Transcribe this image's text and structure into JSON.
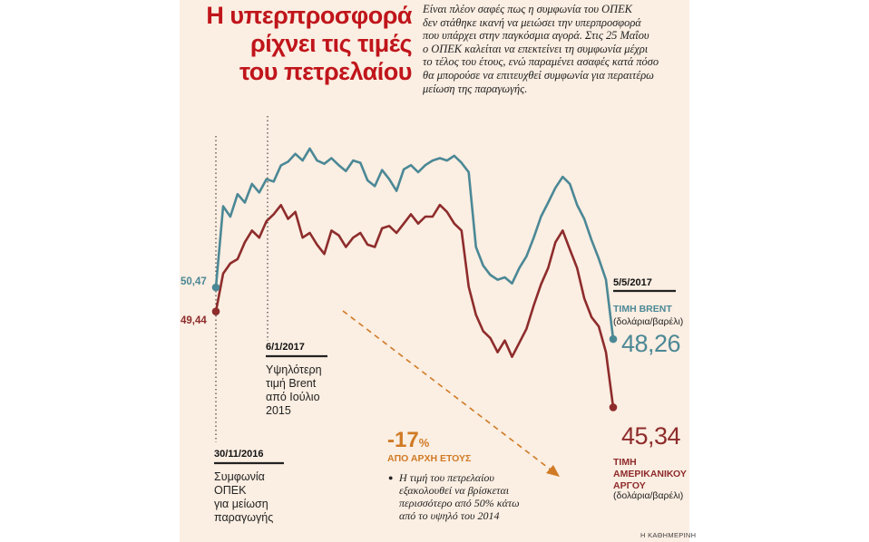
{
  "title_lines": [
    "Η υπερπροσφορά",
    "ρίχνει τις τιμές",
    "του πετρελαίου"
  ],
  "intro_lines": [
    "Είναι πλέον σαφές πως η συμφωνία του ΟΠΕΚ",
    "δεν στάθηκε ικανή να μειώσει την υπερπροσφορά",
    "που υπάρχει στην παγκόσμια αγορά. Στις 25 Μαΐου",
    "ο ΟΠΕΚ καλείται να επεκτείνει τη συμφωνία μέχρι",
    "το τέλος του έτους, ενώ παραμένει ασαφές κατά πόσο",
    "θα μπορούσε να επιτευχθεί συμφωνία για περαιτέρω",
    "μείωση της παραγωγής."
  ],
  "annotations": {
    "agreement": {
      "date": "30/11/2016",
      "lines": [
        "Συμφωνία",
        "ΟΠΕΚ",
        "για μείωση",
        "παραγωγής"
      ]
    },
    "peak": {
      "date": "6/1/2017",
      "lines": [
        "Υψηλότερη",
        "τιμή Brent",
        "από Ιούλιο",
        "2015"
      ]
    },
    "latest": {
      "date": "5/5/2017"
    },
    "change": {
      "value": "-17",
      "symbol": "%",
      "subtitle": "ΑΠΟ ΑΡΧΗ ΕΤΟΥΣ",
      "bullet": "●",
      "note_lines": [
        "Η τιμή του πετρελαίου",
        "εξακολουθεί να βρίσκεται",
        "περισσότερο από 50% κάτω",
        "από το υψηλό του 2014"
      ]
    }
  },
  "labels": {
    "brent_start": "50,47",
    "wti_start": "49,44",
    "brent_end": "48,26",
    "wti_end": "45,34",
    "brent_name": "ΤΙΜΗ BRENT",
    "brent_unit": "(δολάρια/βαρέλι)",
    "wti_name_lines": [
      "ΤΙΜΗ",
      "ΑΜΕΡΙΚΑΝΙΚΟΥ",
      "ΑΡΓΟΥ"
    ],
    "wti_unit": "(δολάρια/βαρέλι)"
  },
  "source": "Η ΚΑΘΗΜΕΡΙΝΗ",
  "colors": {
    "brent": "#4b8896",
    "wti": "#8e2c2c",
    "accent": "#d07a25",
    "title": "#c0151b",
    "background": "#fbeee2"
  },
  "chart_data": {
    "type": "line",
    "title": "Η υπερπροσφορά ρίχνει τις τιμές του πετρελαίου",
    "xlabel": "",
    "ylabel": "δολάρια/βαρέλι",
    "x_range": [
      "30/11/2016",
      "5/5/2017"
    ],
    "ylim": [
      44,
      58.5
    ],
    "grid": false,
    "legend": "right (direct labels)",
    "series": [
      {
        "name": "ΤΙΜΗ BRENT",
        "values": [
          50.47,
          53.94,
          53.5,
          54.46,
          54.1,
          54.9,
          54.53,
          55.1,
          55.0,
          55.69,
          55.85,
          56.18,
          55.9,
          56.41,
          55.9,
          55.76,
          56.0,
          55.7,
          55.45,
          55.9,
          55.8,
          55.05,
          54.8,
          55.49,
          55.1,
          54.6,
          55.52,
          55.7,
          55.4,
          55.7,
          55.9,
          56.0,
          55.9,
          56.1,
          55.8,
          55.4,
          52.2,
          51.4,
          51.0,
          50.8,
          50.9,
          50.64,
          51.3,
          51.8,
          52.6,
          53.5,
          54.1,
          54.73,
          55.2,
          54.9,
          54.0,
          53.4,
          52.5,
          51.7,
          50.8,
          48.26
        ]
      },
      {
        "name": "ΤΙΜΗ ΑΜΕΡΙΚΑΝΙΚΟΥ ΑΡΓΟΥ",
        "values": [
          49.44,
          51.06,
          51.5,
          51.68,
          52.4,
          52.9,
          52.6,
          53.3,
          53.6,
          53.99,
          53.4,
          53.7,
          52.6,
          52.8,
          52.3,
          51.9,
          52.9,
          52.7,
          52.2,
          52.6,
          52.8,
          52.3,
          52.2,
          53.0,
          53.1,
          52.8,
          53.2,
          53.6,
          53.2,
          53.5,
          53.5,
          54.0,
          53.7,
          53.2,
          52.9,
          50.5,
          49.3,
          48.6,
          48.3,
          47.7,
          48.2,
          47.5,
          48.1,
          48.7,
          49.7,
          50.6,
          51.3,
          52.4,
          52.9,
          52.1,
          51.3,
          50.0,
          49.2,
          48.8,
          47.7,
          45.34
        ]
      }
    ],
    "annotations": [
      {
        "x": "30/11/2016",
        "text": "Συμφωνία ΟΠΕΚ για μείωση παραγωγής"
      },
      {
        "x": "6/1/2017",
        "text": "Υψηλότερη τιμή Brent από Ιούλιο 2015"
      },
      {
        "x": "5/5/2017",
        "text": "-17% από αρχή έτους"
      }
    ]
  }
}
